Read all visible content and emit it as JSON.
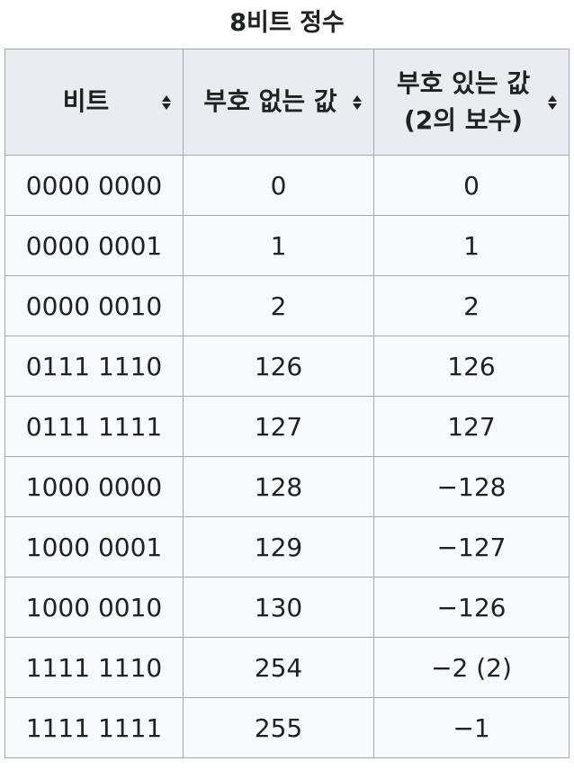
{
  "table": {
    "caption": "8비트 정수",
    "headers": [
      {
        "label": "비트",
        "sort_icon": "sort-icon"
      },
      {
        "label": "부호 없는 값",
        "sort_icon": "sort-icon"
      },
      {
        "label_line1": "부호 있는 값",
        "label_line2": "(2의 보수)",
        "sort_icon": "sort-icon"
      }
    ],
    "rows": [
      [
        "0000 0000",
        "0",
        "0"
      ],
      [
        "0000 0001",
        "1",
        "1"
      ],
      [
        "0000 0010",
        "2",
        "2"
      ],
      [
        "0111 1110",
        "126",
        "126"
      ],
      [
        "0111 1111",
        "127",
        "127"
      ],
      [
        "1000 0000",
        "128",
        "−128"
      ],
      [
        "1000 0001",
        "129",
        "−127"
      ],
      [
        "1000 0010",
        "130",
        "−126"
      ],
      [
        "1111 1110",
        "254",
        "−2 (2)"
      ],
      [
        "1111 1111",
        "255",
        "−1"
      ]
    ]
  }
}
